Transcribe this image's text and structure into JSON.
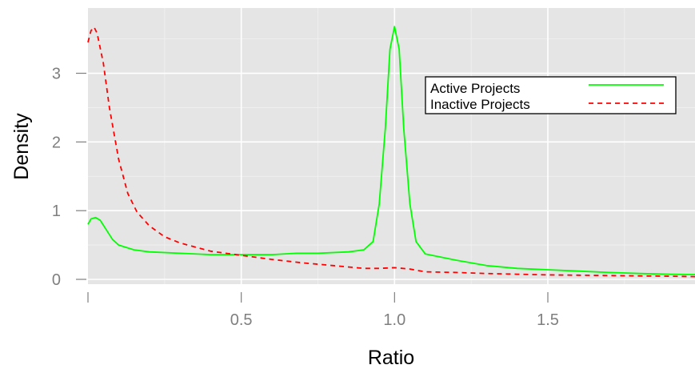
{
  "chart_data": {
    "type": "line",
    "title": "",
    "xlabel": "Ratio",
    "ylabel": "Density",
    "xlim": [
      0.0,
      1.98
    ],
    "ylim": [
      -0.07,
      3.95
    ],
    "x_ticks": [
      0.5,
      1.0,
      1.5
    ],
    "x_tick_labels": [
      "0.5",
      "1.0",
      "1.5"
    ],
    "y_ticks": [
      0,
      1,
      2,
      3
    ],
    "y_tick_labels": [
      "0",
      "1",
      "2",
      "3"
    ],
    "grid": true,
    "legend_position": "top-right",
    "series": [
      {
        "name": "Active Projects",
        "color": "#00ff00",
        "dash": "solid",
        "points": [
          [
            0.0,
            0.8
          ],
          [
            0.01,
            0.88
          ],
          [
            0.025,
            0.9
          ],
          [
            0.04,
            0.86
          ],
          [
            0.06,
            0.72
          ],
          [
            0.08,
            0.58
          ],
          [
            0.1,
            0.5
          ],
          [
            0.15,
            0.43
          ],
          [
            0.2,
            0.4
          ],
          [
            0.3,
            0.38
          ],
          [
            0.4,
            0.36
          ],
          [
            0.5,
            0.36
          ],
          [
            0.6,
            0.36
          ],
          [
            0.68,
            0.38
          ],
          [
            0.75,
            0.38
          ],
          [
            0.85,
            0.4
          ],
          [
            0.9,
            0.43
          ],
          [
            0.93,
            0.55
          ],
          [
            0.95,
            1.1
          ],
          [
            0.97,
            2.2
          ],
          [
            0.985,
            3.35
          ],
          [
            1.0,
            3.68
          ],
          [
            1.015,
            3.35
          ],
          [
            1.03,
            2.2
          ],
          [
            1.05,
            1.1
          ],
          [
            1.07,
            0.55
          ],
          [
            1.1,
            0.37
          ],
          [
            1.2,
            0.28
          ],
          [
            1.3,
            0.2
          ],
          [
            1.4,
            0.16
          ],
          [
            1.5,
            0.14
          ],
          [
            1.6,
            0.12
          ],
          [
            1.7,
            0.1
          ],
          [
            1.8,
            0.085
          ],
          [
            1.9,
            0.075
          ],
          [
            1.98,
            0.07
          ]
        ]
      },
      {
        "name": "Inactive Projects",
        "color": "#ff0000",
        "dash": "dashed",
        "points": [
          [
            0.0,
            3.45
          ],
          [
            0.01,
            3.62
          ],
          [
            0.02,
            3.67
          ],
          [
            0.03,
            3.58
          ],
          [
            0.05,
            3.15
          ],
          [
            0.07,
            2.5
          ],
          [
            0.1,
            1.75
          ],
          [
            0.13,
            1.25
          ],
          [
            0.16,
            0.98
          ],
          [
            0.2,
            0.78
          ],
          [
            0.25,
            0.62
          ],
          [
            0.3,
            0.53
          ],
          [
            0.4,
            0.41
          ],
          [
            0.5,
            0.35
          ],
          [
            0.6,
            0.29
          ],
          [
            0.7,
            0.24
          ],
          [
            0.8,
            0.2
          ],
          [
            0.9,
            0.16
          ],
          [
            0.95,
            0.16
          ],
          [
            1.0,
            0.17
          ],
          [
            1.05,
            0.15
          ],
          [
            1.1,
            0.11
          ],
          [
            1.2,
            0.1
          ],
          [
            1.3,
            0.085
          ],
          [
            1.4,
            0.075
          ],
          [
            1.5,
            0.065
          ],
          [
            1.6,
            0.06
          ],
          [
            1.7,
            0.055
          ],
          [
            1.8,
            0.05
          ],
          [
            1.9,
            0.045
          ],
          [
            1.98,
            0.04
          ]
        ]
      }
    ]
  }
}
